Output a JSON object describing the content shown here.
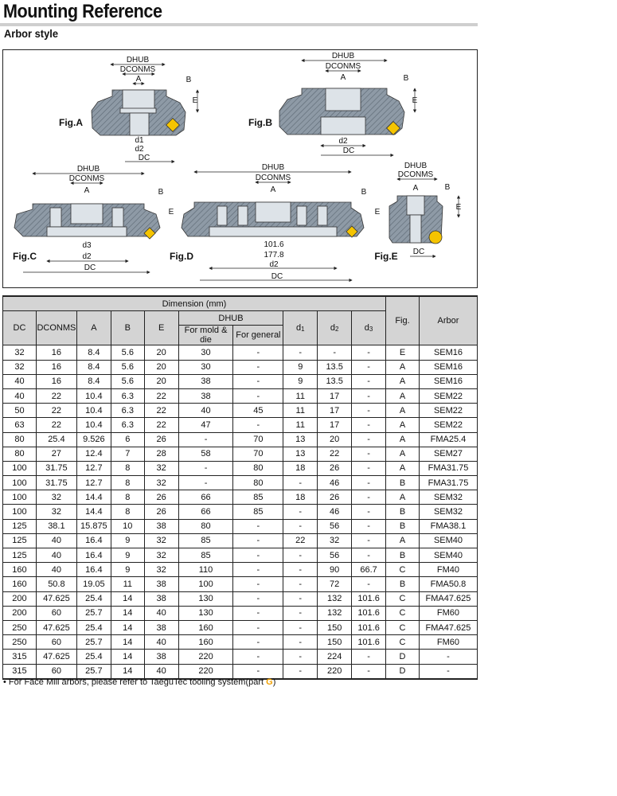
{
  "header": {
    "title": "Mounting Reference",
    "subtitle": "Arbor style"
  },
  "figures": {
    "labels": [
      "Fig.A",
      "Fig.B",
      "Fig.C",
      "Fig.D",
      "Fig.E"
    ],
    "dims": {
      "dhub": "DHUB",
      "dconms": "DCONMS",
      "a": "A",
      "b": "B",
      "e": "E",
      "dc": "DC",
      "d1": "d1",
      "d2": "d2",
      "d3": "d3"
    },
    "fig_d_values": [
      "101.6",
      "177.8"
    ],
    "colors": {
      "body": "#8e9aa6",
      "insert": "#f5c400"
    }
  },
  "table": {
    "group_header": "Dimension (mm)",
    "columns": {
      "dc": "DC",
      "dconms": "DCONMS",
      "a": "A",
      "b": "B",
      "e": "E",
      "dhub": "DHUB",
      "mold": "For mold & die",
      "general": "For general",
      "d1": "d",
      "d2": "d",
      "d3": "d",
      "d1_sub": "1",
      "d2_sub": "2",
      "d3_sub": "3",
      "fig": "Fig.",
      "arbor": "Arbor"
    },
    "rows": [
      [
        "32",
        "16",
        "8.4",
        "5.6",
        "20",
        "30",
        "-",
        "-",
        "-",
        "-",
        "E",
        "SEM16"
      ],
      [
        "32",
        "16",
        "8.4",
        "5.6",
        "20",
        "30",
        "-",
        "9",
        "13.5",
        "-",
        "A",
        "SEM16"
      ],
      [
        "40",
        "16",
        "8.4",
        "5.6",
        "20",
        "38",
        "-",
        "9",
        "13.5",
        "-",
        "A",
        "SEM16"
      ],
      [
        "40",
        "22",
        "10.4",
        "6.3",
        "22",
        "38",
        "-",
        "11",
        "17",
        "-",
        "A",
        "SEM22"
      ],
      [
        "50",
        "22",
        "10.4",
        "6.3",
        "22",
        "40",
        "45",
        "11",
        "17",
        "-",
        "A",
        "SEM22"
      ],
      [
        "63",
        "22",
        "10.4",
        "6.3",
        "22",
        "47",
        "-",
        "11",
        "17",
        "-",
        "A",
        "SEM22"
      ],
      [
        "80",
        "25.4",
        "9.526",
        "6",
        "26",
        "-",
        "70",
        "13",
        "20",
        "-",
        "A",
        "FMA25.4"
      ],
      [
        "80",
        "27",
        "12.4",
        "7",
        "28",
        "58",
        "70",
        "13",
        "22",
        "-",
        "A",
        "SEM27"
      ],
      [
        "100",
        "31.75",
        "12.7",
        "8",
        "32",
        "-",
        "80",
        "18",
        "26",
        "-",
        "A",
        "FMA31.75"
      ],
      [
        "100",
        "31.75",
        "12.7",
        "8",
        "32",
        "-",
        "80",
        "-",
        "46",
        "-",
        "B",
        "FMA31.75"
      ],
      [
        "100",
        "32",
        "14.4",
        "8",
        "26",
        "66",
        "85",
        "18",
        "26",
        "-",
        "A",
        "SEM32"
      ],
      [
        "100",
        "32",
        "14.4",
        "8",
        "26",
        "66",
        "85",
        "-",
        "46",
        "-",
        "B",
        "SEM32"
      ],
      [
        "125",
        "38.1",
        "15.875",
        "10",
        "38",
        "80",
        "-",
        "-",
        "56",
        "-",
        "B",
        "FMA38.1"
      ],
      [
        "125",
        "40",
        "16.4",
        "9",
        "32",
        "85",
        "-",
        "22",
        "32",
        "-",
        "A",
        "SEM40"
      ],
      [
        "125",
        "40",
        "16.4",
        "9",
        "32",
        "85",
        "-",
        "-",
        "56",
        "-",
        "B",
        "SEM40"
      ],
      [
        "160",
        "40",
        "16.4",
        "9",
        "32",
        "110",
        "-",
        "-",
        "90",
        "66.7",
        "C",
        "FM40"
      ],
      [
        "160",
        "50.8",
        "19.05",
        "11",
        "38",
        "100",
        "-",
        "-",
        "72",
        "-",
        "B",
        "FMA50.8"
      ],
      [
        "200",
        "47.625",
        "25.4",
        "14",
        "38",
        "130",
        "-",
        "-",
        "132",
        "101.6",
        "C",
        "FMA47.625"
      ],
      [
        "200",
        "60",
        "25.7",
        "14",
        "40",
        "130",
        "-",
        "-",
        "132",
        "101.6",
        "C",
        "FM60"
      ],
      [
        "250",
        "47.625",
        "25.4",
        "14",
        "38",
        "160",
        "-",
        "-",
        "150",
        "101.6",
        "C",
        "FMA47.625"
      ],
      [
        "250",
        "60",
        "25.7",
        "14",
        "40",
        "160",
        "-",
        "-",
        "150",
        "101.6",
        "C",
        "FM60"
      ],
      [
        "315",
        "47.625",
        "25.4",
        "14",
        "38",
        "220",
        "-",
        "-",
        "224",
        "-",
        "D",
        "-"
      ],
      [
        "315",
        "60",
        "25.7",
        "14",
        "40",
        "220",
        "-",
        "-",
        "220",
        "-",
        "D",
        "-"
      ]
    ]
  },
  "footer": {
    "note": "• For Face Mill arbors, please refer to TaeguTec tooling system(part ",
    "part": "G",
    "close": ")"
  }
}
